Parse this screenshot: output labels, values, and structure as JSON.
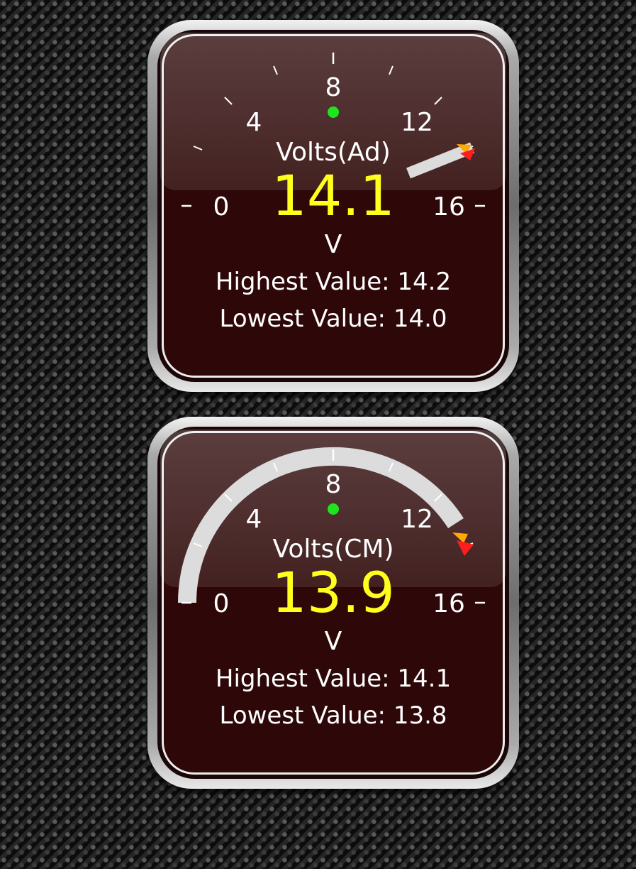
{
  "gauges": [
    {
      "style": "needle",
      "title": "Volts(Ad)",
      "value": "14.1",
      "unit": "V",
      "scale_labels": [
        "0",
        "4",
        "8",
        "12",
        "16"
      ],
      "highest_label": "Highest Value: 14.2",
      "lowest_label": "Lowest Value: 14.0",
      "level": 14.1,
      "scale_min": 0,
      "scale_max": 16
    },
    {
      "style": "arc",
      "title": "Volts(CM)",
      "value": "13.9",
      "unit": "V",
      "scale_labels": [
        "0",
        "4",
        "8",
        "12",
        "16"
      ],
      "highest_label": "Highest Value: 14.1",
      "lowest_label": "Lowest Value: 13.8",
      "level": 13.9,
      "scale_min": 0,
      "scale_max": 16
    }
  ],
  "colors": {
    "value_text": "#ffff1e",
    "indicator_dot": "#1ee61e",
    "marker_high": "#ff1e1e",
    "marker_low": "#ffaa00",
    "face": "#2e0808"
  }
}
